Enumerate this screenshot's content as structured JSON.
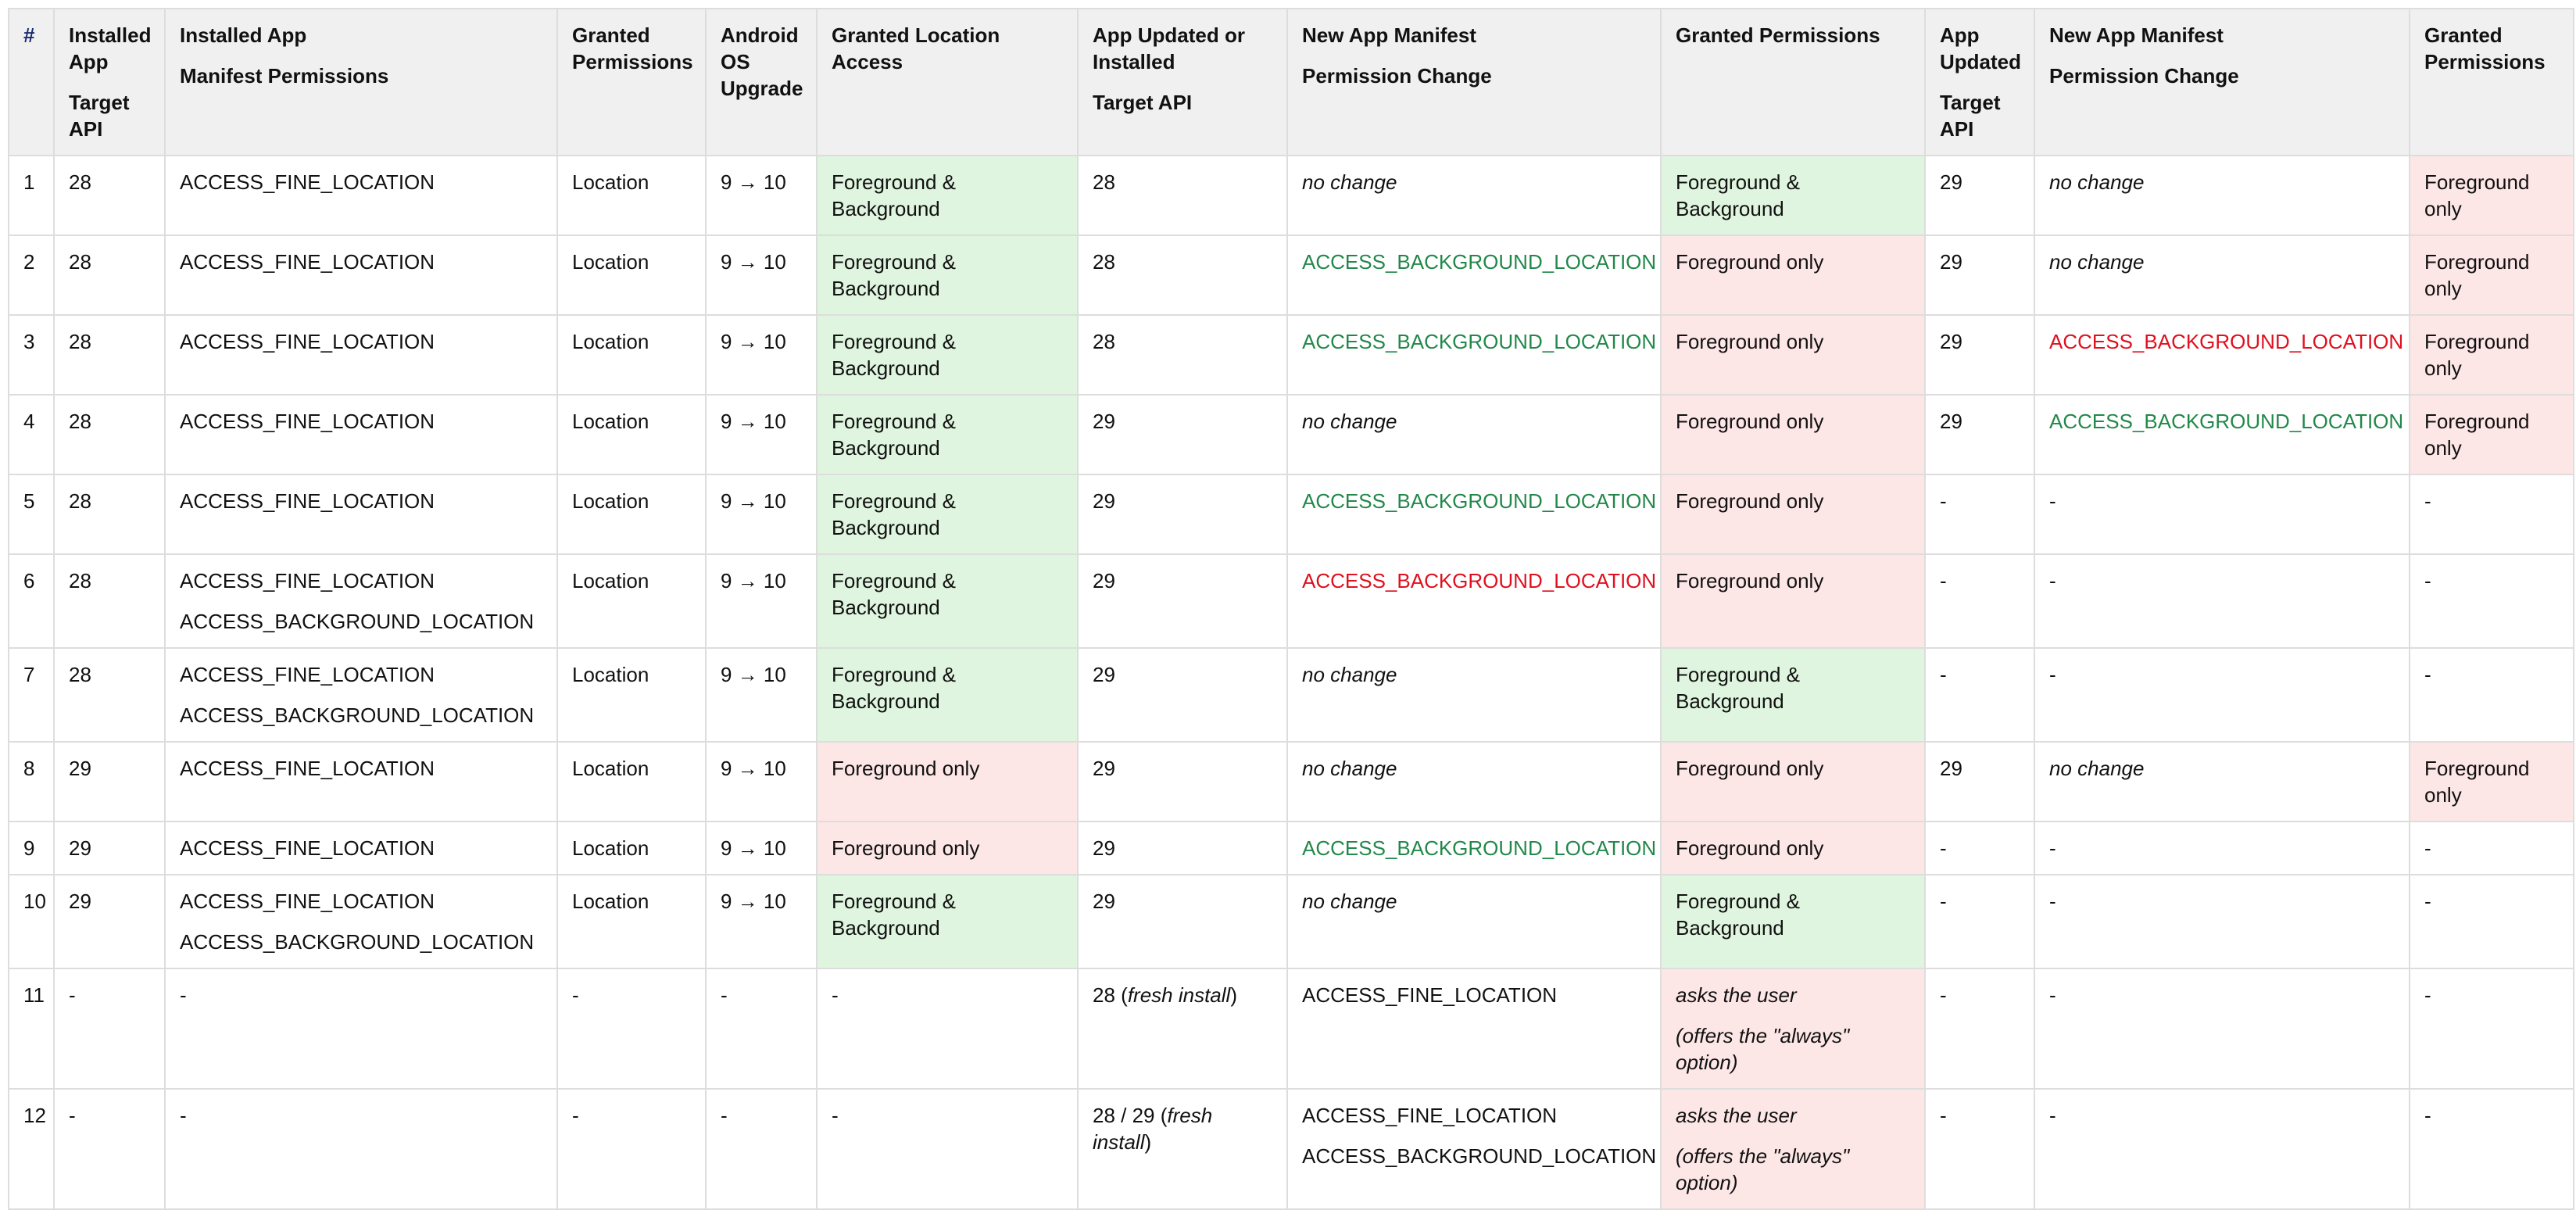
{
  "headers": [
    [
      "#"
    ],
    [
      "Installed App",
      "Target API"
    ],
    [
      "Installed App",
      "Manifest Permissions"
    ],
    [
      "Granted Permissions"
    ],
    [
      "Android OS Upgrade"
    ],
    [
      "Granted Location Access"
    ],
    [
      "App Updated or Installed",
      "Target API"
    ],
    [
      "New App Manifest",
      "Permission Change"
    ],
    [
      "Granted Permissions"
    ],
    [
      "App Updated",
      "Target API"
    ],
    [
      "New App Manifest",
      "Permission Change"
    ],
    [
      "Granted Permissions"
    ]
  ],
  "rows": [
    {
      "n": "1",
      "api": "28",
      "perms": [
        "ACCESS_FINE_LOCATION"
      ],
      "granted": "Location",
      "upgrade": "9 → 10",
      "loc": "Foreground & Background",
      "upd": "28",
      "upd_note": "",
      "change": [
        "no change"
      ],
      "gp": [
        "Foreground & Background"
      ],
      "upd2": "29",
      "change2": "no change",
      "gp2": "Foreground only"
    },
    {
      "n": "2",
      "api": "28",
      "perms": [
        "ACCESS_FINE_LOCATION"
      ],
      "granted": "Location",
      "upgrade": "9 → 10",
      "loc": "Foreground & Background",
      "upd": "28",
      "upd_note": "",
      "change": [
        "ACCESS_BACKGROUND_LOCATION"
      ],
      "gp": [
        "Foreground only"
      ],
      "upd2": "29",
      "change2": "no change",
      "gp2": "Foreground only"
    },
    {
      "n": "3",
      "api": "28",
      "perms": [
        "ACCESS_FINE_LOCATION"
      ],
      "granted": "Location",
      "upgrade": "9 → 10",
      "loc": "Foreground & Background",
      "upd": "28",
      "upd_note": "",
      "change": [
        "ACCESS_BACKGROUND_LOCATION"
      ],
      "gp": [
        "Foreground only"
      ],
      "upd2": "29",
      "change2": "ACCESS_BACKGROUND_LOCATION",
      "gp2": "Foreground only"
    },
    {
      "n": "4",
      "api": "28",
      "perms": [
        "ACCESS_FINE_LOCATION"
      ],
      "granted": "Location",
      "upgrade": "9 → 10",
      "loc": "Foreground & Background",
      "upd": "29",
      "upd_note": "",
      "change": [
        "no change"
      ],
      "gp": [
        "Foreground only"
      ],
      "upd2": "29",
      "change2": "ACCESS_BACKGROUND_LOCATION",
      "gp2": "Foreground only"
    },
    {
      "n": "5",
      "api": "28",
      "perms": [
        "ACCESS_FINE_LOCATION"
      ],
      "granted": "Location",
      "upgrade": "9 → 10",
      "loc": "Foreground & Background",
      "upd": "29",
      "upd_note": "",
      "change": [
        "ACCESS_BACKGROUND_LOCATION"
      ],
      "gp": [
        "Foreground only"
      ],
      "upd2": "-",
      "change2": "-",
      "gp2": "-"
    },
    {
      "n": "6",
      "api": "28",
      "perms": [
        "ACCESS_FINE_LOCATION",
        "ACCESS_BACKGROUND_LOCATION"
      ],
      "granted": "Location",
      "upgrade": "9 → 10",
      "loc": "Foreground & Background",
      "upd": "29",
      "upd_note": "",
      "change": [
        "ACCESS_BACKGROUND_LOCATION"
      ],
      "gp": [
        "Foreground only"
      ],
      "upd2": "-",
      "change2": "-",
      "gp2": "-"
    },
    {
      "n": "7",
      "api": "28",
      "perms": [
        "ACCESS_FINE_LOCATION",
        "ACCESS_BACKGROUND_LOCATION"
      ],
      "granted": "Location",
      "upgrade": "9 → 10",
      "loc": "Foreground & Background",
      "upd": "29",
      "upd_note": "",
      "change": [
        "no change"
      ],
      "gp": [
        "Foreground & Background"
      ],
      "upd2": "-",
      "change2": "-",
      "gp2": "-"
    },
    {
      "n": "8",
      "api": "29",
      "perms": [
        "ACCESS_FINE_LOCATION"
      ],
      "granted": "Location",
      "upgrade": "9 → 10",
      "loc": "Foreground only",
      "upd": "29",
      "upd_note": "",
      "change": [
        "no change"
      ],
      "gp": [
        "Foreground only"
      ],
      "upd2": "29",
      "change2": "no change",
      "gp2": "Foreground only"
    },
    {
      "n": "9",
      "api": "29",
      "perms": [
        "ACCESS_FINE_LOCATION"
      ],
      "granted": "Location",
      "upgrade": "9 → 10",
      "loc": "Foreground only",
      "upd": "29",
      "upd_note": "",
      "change": [
        "ACCESS_BACKGROUND_LOCATION"
      ],
      "gp": [
        "Foreground only"
      ],
      "upd2": "-",
      "change2": "-",
      "gp2": "-"
    },
    {
      "n": "10",
      "api": "29",
      "perms": [
        "ACCESS_FINE_LOCATION",
        "ACCESS_BACKGROUND_LOCATION"
      ],
      "granted": "Location",
      "upgrade": "9 → 10",
      "loc": "Foreground & Background",
      "upd": "29",
      "upd_note": "",
      "change": [
        "no change"
      ],
      "gp": [
        "Foreground & Background"
      ],
      "upd2": "-",
      "change2": "-",
      "gp2": "-"
    },
    {
      "n": "11",
      "api": "-",
      "perms": [
        "-"
      ],
      "granted": "-",
      "upgrade": "-",
      "loc": "-",
      "upd": "28",
      "upd_note": "fresh install",
      "change": [
        "ACCESS_FINE_LOCATION"
      ],
      "gp": [
        "asks the user",
        "(offers the \"always\" option)"
      ],
      "upd2": "-",
      "change2": "-",
      "gp2": "-"
    },
    {
      "n": "12",
      "api": "-",
      "perms": [
        "-"
      ],
      "granted": "-",
      "upgrade": "-",
      "loc": "-",
      "upd": "28 / 29",
      "upd_note": "fresh install",
      "change": [
        "ACCESS_FINE_LOCATION",
        "ACCESS_BACKGROUND_LOCATION"
      ],
      "gp": [
        "asks the user",
        "(offers the \"always\" option)"
      ],
      "upd2": "-",
      "change2": "-",
      "gp2": "-"
    }
  ],
  "styles": {
    "loc_bg": [
      "g",
      "g",
      "g",
      "g",
      "g",
      "g",
      "g",
      "r",
      "r",
      "g",
      "",
      ""
    ],
    "change_class": [
      "it",
      "gt",
      "gt",
      "it",
      "gt",
      "rt",
      "it",
      "it",
      "gt",
      "it",
      "",
      ""
    ],
    "gp_bg": [
      "g",
      "r",
      "r",
      "r",
      "r",
      "r",
      "g",
      "r",
      "r",
      "g",
      "r",
      "r"
    ],
    "gp_class": [
      "",
      "",
      "",
      "",
      "",
      "",
      "",
      "",
      "",
      "",
      "it",
      "it"
    ],
    "change2_class": [
      "it",
      "it",
      "rt",
      "gt",
      "",
      "",
      "",
      "it",
      "",
      "",
      "",
      ""
    ],
    "gp2_bg": [
      "r",
      "r",
      "r",
      "r",
      "",
      "",
      "",
      "r",
      "",
      "",
      "",
      ""
    ]
  },
  "colors": {
    "green_bg": "#dff5df",
    "red_bg": "#fde6e6",
    "green_text": "#22884a",
    "red_text": "#e0101e",
    "header_bg": "#f0f0f0",
    "border": "#dddddd"
  }
}
